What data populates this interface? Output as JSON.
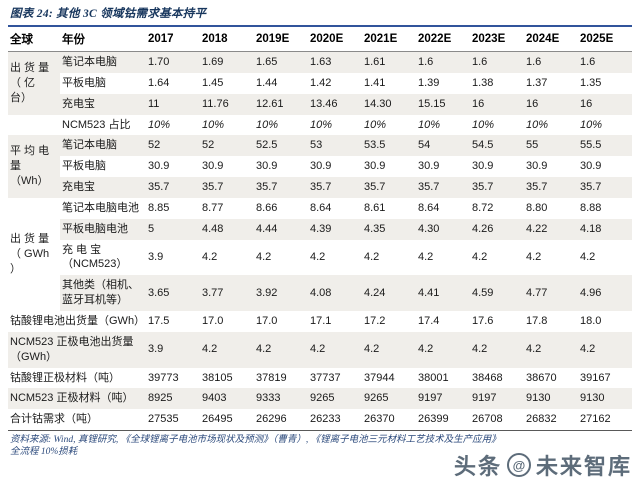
{
  "title": "图表 24: 其他 3C 领域钴需求基本持平",
  "colors": {
    "accent_navy": "#17365d",
    "rule_blue": "#31549b",
    "row_shade": "#f0eeea"
  },
  "footer": {
    "line1": "资料来源: Wind, 真锂研究, 《全球锂离子电池市场现状及预测》（曹青）, 《锂离子电池三元材料工艺技术及生产应用》",
    "line2": "全流程 10%损耗"
  },
  "watermark": {
    "left": "头条",
    "symbol": "@",
    "right": "未来智库"
  },
  "table": {
    "header": {
      "col1": "全球",
      "col2": "年份",
      "years": [
        "2017",
        "2018",
        "2019E",
        "2020E",
        "2021E",
        "2022E",
        "2023E",
        "2024E",
        "2025E"
      ]
    },
    "rows": [
      {
        "group": {
          "label": "出 货 量\n（  亿\n台）",
          "span": 3
        },
        "label": "笔记本电脑",
        "values": [
          "1.70",
          "1.69",
          "1.65",
          "1.63",
          "1.61",
          "1.6",
          "1.6",
          "1.6",
          "1.6"
        ]
      },
      {
        "label": "平板电脑",
        "values": [
          "1.64",
          "1.45",
          "1.44",
          "1.42",
          "1.41",
          "1.39",
          "1.38",
          "1.37",
          "1.35"
        ]
      },
      {
        "label": "充电宝",
        "values": [
          "11",
          "11.76",
          "12.61",
          "13.46",
          "14.30",
          "15.15",
          "16",
          "16",
          "16"
        ]
      },
      {
        "group": {
          "label": "",
          "span": 1
        },
        "label": "NCM523 占比",
        "italic": true,
        "values": [
          "10%",
          "10%",
          "10%",
          "10%",
          "10%",
          "10%",
          "10%",
          "10%",
          "10%"
        ]
      },
      {
        "group": {
          "label": "平 均 电\n量\n（Wh）",
          "span": 3
        },
        "label": "笔记本电脑",
        "values": [
          "52",
          "52",
          "52.5",
          "53",
          "53.5",
          "54",
          "54.5",
          "55",
          "55.5"
        ]
      },
      {
        "label": "平板电脑",
        "values": [
          "30.9",
          "30.9",
          "30.9",
          "30.9",
          "30.9",
          "30.9",
          "30.9",
          "30.9",
          "30.9"
        ]
      },
      {
        "label": "充电宝",
        "values": [
          "35.7",
          "35.7",
          "35.7",
          "35.7",
          "35.7",
          "35.7",
          "35.7",
          "35.7",
          "35.7"
        ]
      },
      {
        "group": {
          "label": "出 货 量\n（ GWh\n）",
          "span": 4
        },
        "label": "笔记本电脑电池",
        "values": [
          "8.85",
          "8.77",
          "8.66",
          "8.64",
          "8.61",
          "8.64",
          "8.72",
          "8.80",
          "8.88"
        ]
      },
      {
        "label": "平板电脑电池",
        "values": [
          "5",
          "4.48",
          "4.44",
          "4.39",
          "4.35",
          "4.30",
          "4.26",
          "4.22",
          "4.18"
        ]
      },
      {
        "label": "充  电  宝\n（NCM523）",
        "values": [
          "3.9",
          "4.2",
          "4.2",
          "4.2",
          "4.2",
          "4.2",
          "4.2",
          "4.2",
          "4.2"
        ]
      },
      {
        "label": "其他类（相机、\n蓝牙耳机等）",
        "values": [
          "3.65",
          "3.77",
          "3.92",
          "4.08",
          "4.24",
          "4.41",
          "4.59",
          "4.77",
          "4.96"
        ]
      },
      {
        "full": true,
        "label": "钴酸锂电池出货量（GWh）",
        "values": [
          "17.5",
          "17.0",
          "17.0",
          "17.1",
          "17.2",
          "17.4",
          "17.6",
          "17.8",
          "18.0"
        ]
      },
      {
        "full": true,
        "label": "NCM523 正极电池出货量\n（GWh）",
        "values": [
          "3.9",
          "4.2",
          "4.2",
          "4.2",
          "4.2",
          "4.2",
          "4.2",
          "4.2",
          "4.2"
        ]
      },
      {
        "full": true,
        "label": "钴酸锂正极材料（吨）",
        "values": [
          "39773",
          "38105",
          "37819",
          "37737",
          "37944",
          "38001",
          "38468",
          "38670",
          "39167"
        ]
      },
      {
        "full": true,
        "label": "NCM523 正极材料（吨）",
        "values": [
          "8925",
          "9403",
          "9333",
          "9265",
          "9265",
          "9197",
          "9197",
          "9130",
          "9130"
        ]
      },
      {
        "full": true,
        "label": "合计钴需求（吨）",
        "values": [
          "27535",
          "26495",
          "26296",
          "26233",
          "26370",
          "26399",
          "26708",
          "26832",
          "27162"
        ]
      }
    ]
  }
}
